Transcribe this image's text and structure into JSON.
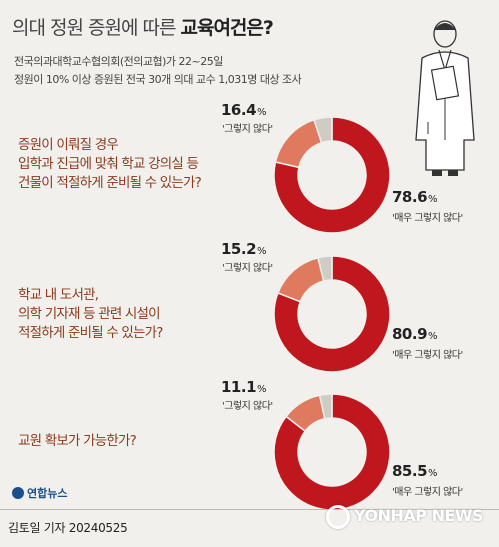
{
  "header": {
    "title_light": "의대 정원 증원에 따른 ",
    "title_bold": "교육여건은?",
    "source_line1": "전국의과대학교수협의회(전의교협)가 22~25일",
    "source_line2": "정원이 10% 이상 증원된 전국 30개 의대 교수 1,031명 대상 조사"
  },
  "colors": {
    "main": "#c0161d",
    "secondary": "#e07a5f",
    "rest": "#cfccc6"
  },
  "chart_data": [
    {
      "type": "pie",
      "question": "증원이 이뤄질 경우\n입학과 진급에 맞춰 학교 강의실 등\n건물이 적절하게 준비될 수 있는가?",
      "slices": [
        {
          "label": "'매우 그렇지 않다'",
          "value": 78.6,
          "display": "78.6"
        },
        {
          "label": "'그렇지 않다'",
          "value": 16.4,
          "display": "16.4"
        }
      ]
    },
    {
      "type": "pie",
      "question": "학교 내 도서관,\n의학 기자재 등 관련 시설이\n적절하게 준비될 수 있는가?",
      "slices": [
        {
          "label": "'매우 그렇지 않다'",
          "value": 80.9,
          "display": "80.9"
        },
        {
          "label": "'그렇지 않다'",
          "value": 15.2,
          "display": "15.2"
        }
      ]
    },
    {
      "type": "pie",
      "question": "교원 확보가 가능한가?",
      "slices": [
        {
          "label": "'매우 그렇지 않다'",
          "value": 85.5,
          "display": "85.5"
        },
        {
          "label": "'그렇지 않다'",
          "value": 11.1,
          "display": "11.1"
        }
      ]
    }
  ],
  "pct_unit": "%",
  "footer": {
    "logo": "연합뉴스",
    "byline": "김토일 기자  20240525",
    "watermark": "YONHAP NEWS"
  }
}
